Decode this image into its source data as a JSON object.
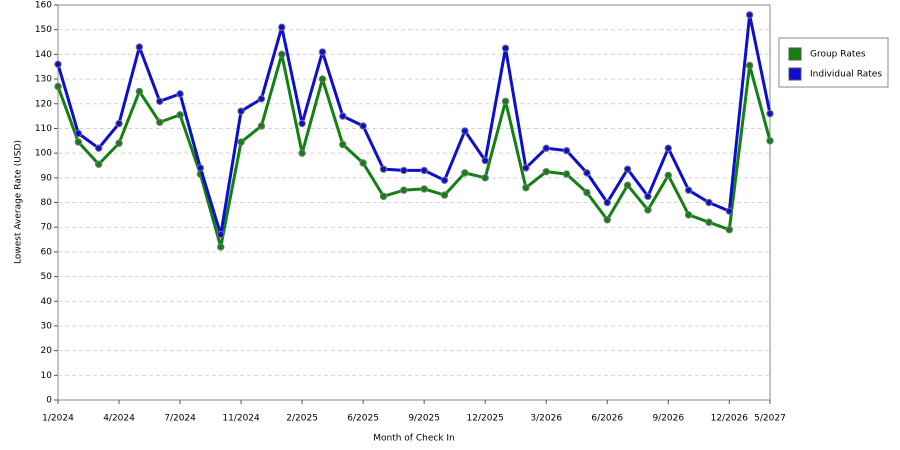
{
  "chart_data": {
    "type": "line",
    "y_label": "Lowest Average Rate (USD)",
    "x_label": "Month of Check In",
    "categories": [
      "1/2024",
      null,
      null,
      "4/2024",
      null,
      null,
      "7/2024",
      null,
      null,
      "11/2024",
      null,
      null,
      "2/2025",
      null,
      null,
      "6/2025",
      null,
      null,
      "9/2025",
      null,
      null,
      "12/2025",
      null,
      null,
      "3/2026",
      null,
      null,
      "6/2026",
      null,
      null,
      "9/2026",
      null,
      null,
      "12/2026",
      null,
      "5/2027"
    ],
    "series": [
      {
        "name": "Group Rates",
        "color": "#138012",
        "values": [
          127,
          104.5,
          95.5,
          104,
          125,
          112.5,
          115.5,
          91.5,
          62,
          104.5,
          111,
          140,
          100,
          130,
          103.5,
          96,
          82.5,
          85,
          85.5,
          83,
          92,
          90,
          121,
          86,
          92.5,
          91.5,
          84,
          73,
          87,
          77,
          91,
          75,
          72,
          69,
          135.5,
          105
        ]
      },
      {
        "name": "Individual Rates",
        "color": "#0e0ed0",
        "values": [
          136,
          108,
          102,
          112,
          143,
          121,
          124,
          94,
          67,
          117,
          122,
          151,
          112,
          141,
          115,
          111,
          93.5,
          93,
          93,
          89,
          109,
          97,
          142.5,
          94,
          102,
          101,
          92,
          80,
          93.5,
          82.5,
          102,
          85,
          80,
          76.5,
          156,
          116
        ]
      }
    ],
    "ylim": [
      0,
      160
    ],
    "yticks": [
      0,
      10,
      20,
      30,
      40,
      50,
      60,
      70,
      80,
      90,
      100,
      110,
      120,
      130,
      140,
      150,
      160
    ],
    "grid": true,
    "legend": "right"
  }
}
